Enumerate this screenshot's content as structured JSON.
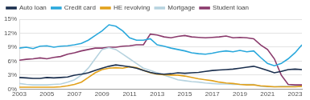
{
  "chart_data": {
    "type": "line",
    "x": [
      2003,
      2003.5,
      2004,
      2004.5,
      2005,
      2005.5,
      2006,
      2006.5,
      2007,
      2007.5,
      2008,
      2008.5,
      2009,
      2009.5,
      2010,
      2010.5,
      2011,
      2011.5,
      2012,
      2012.5,
      2013,
      2013.5,
      2014,
      2014.5,
      2015,
      2015.5,
      2016,
      2016.5,
      2017,
      2017.5,
      2018,
      2018.5,
      2019,
      2019.5,
      2020,
      2020.5,
      2021,
      2021.5,
      2022,
      2022.5,
      2023,
      2023.5
    ],
    "series": [
      {
        "name": "Auto loan",
        "color": "#1b2f4e",
        "values": [
          2.5,
          2.4,
          2.3,
          2.3,
          2.5,
          2.4,
          2.5,
          2.6,
          3.0,
          3.2,
          3.5,
          4.0,
          4.5,
          4.9,
          5.2,
          5.0,
          4.8,
          4.5,
          4.0,
          3.6,
          3.3,
          3.2,
          3.3,
          3.5,
          3.4,
          3.5,
          3.6,
          3.8,
          4.0,
          4.1,
          4.2,
          4.3,
          4.5,
          4.7,
          4.9,
          4.5,
          4.0,
          3.5,
          3.8,
          4.2,
          4.3,
          4.2
        ]
      },
      {
        "name": "Credit card",
        "color": "#2aa8dc",
        "values": [
          8.8,
          9.0,
          8.7,
          9.2,
          9.3,
          9.0,
          9.2,
          9.3,
          9.5,
          9.8,
          10.5,
          11.5,
          12.5,
          13.8,
          13.5,
          12.5,
          11.0,
          10.5,
          10.5,
          10.8,
          9.5,
          9.2,
          8.8,
          8.5,
          8.2,
          7.8,
          7.6,
          7.5,
          7.7,
          8.0,
          8.2,
          8.0,
          8.3,
          8.0,
          8.2,
          6.8,
          5.5,
          5.0,
          5.5,
          6.5,
          7.8,
          9.5
        ]
      },
      {
        "name": "HE revolving",
        "color": "#e2a11b",
        "values": [
          0.4,
          0.4,
          0.4,
          0.4,
          0.4,
          0.4,
          0.5,
          0.7,
          1.0,
          1.5,
          2.5,
          3.5,
          4.2,
          4.5,
          4.6,
          4.5,
          4.8,
          4.6,
          4.0,
          3.5,
          3.2,
          3.1,
          3.0,
          3.0,
          2.8,
          2.5,
          2.2,
          2.0,
          1.8,
          1.5,
          1.3,
          1.2,
          1.0,
          0.9,
          0.9,
          0.7,
          0.6,
          0.5,
          0.5,
          0.5,
          0.5,
          0.6
        ]
      },
      {
        "name": "Mortgage",
        "color": "#b7d3df",
        "values": [
          1.2,
          1.0,
          0.9,
          0.9,
          0.9,
          1.0,
          1.1,
          1.5,
          2.0,
          3.0,
          4.5,
          6.5,
          8.5,
          8.9,
          8.5,
          7.5,
          6.5,
          5.5,
          4.5,
          4.0,
          3.5,
          3.0,
          2.5,
          2.0,
          1.8,
          1.6,
          1.5,
          1.3,
          1.2,
          1.1,
          1.1,
          1.0,
          1.0,
          1.0,
          1.0,
          0.6,
          0.5,
          0.5,
          0.6,
          0.6,
          0.6,
          0.6
        ]
      },
      {
        "name": "Student loan",
        "color": "#8a3a6c",
        "values": [
          6.2,
          6.4,
          6.5,
          6.7,
          6.5,
          6.8,
          7.0,
          7.5,
          7.8,
          8.2,
          8.5,
          8.8,
          8.8,
          9.0,
          9.0,
          9.2,
          9.3,
          9.5,
          9.5,
          11.8,
          11.6,
          11.2,
          11.0,
          11.3,
          11.5,
          11.2,
          11.1,
          11.0,
          11.1,
          11.2,
          11.4,
          11.0,
          11.1,
          11.0,
          10.8,
          9.5,
          8.5,
          6.5,
          3.0,
          1.0,
          0.9,
          0.9
        ]
      }
    ],
    "xlim": [
      2003,
      2023.5
    ],
    "xticks": [
      2003,
      2005,
      2007,
      2009,
      2011,
      2013,
      2015,
      2017,
      2019,
      2021,
      2023
    ],
    "ylim": [
      0,
      15
    ],
    "yticks": [
      {
        "value": 0,
        "label": "0%"
      },
      {
        "value": 3,
        "label": "3%"
      },
      {
        "value": 6,
        "label": "6%"
      },
      {
        "value": 9,
        "label": "9%"
      },
      {
        "value": 12,
        "label": "12%"
      },
      {
        "value": 15,
        "label": "15%"
      }
    ],
    "grid": true,
    "legend": "top"
  }
}
